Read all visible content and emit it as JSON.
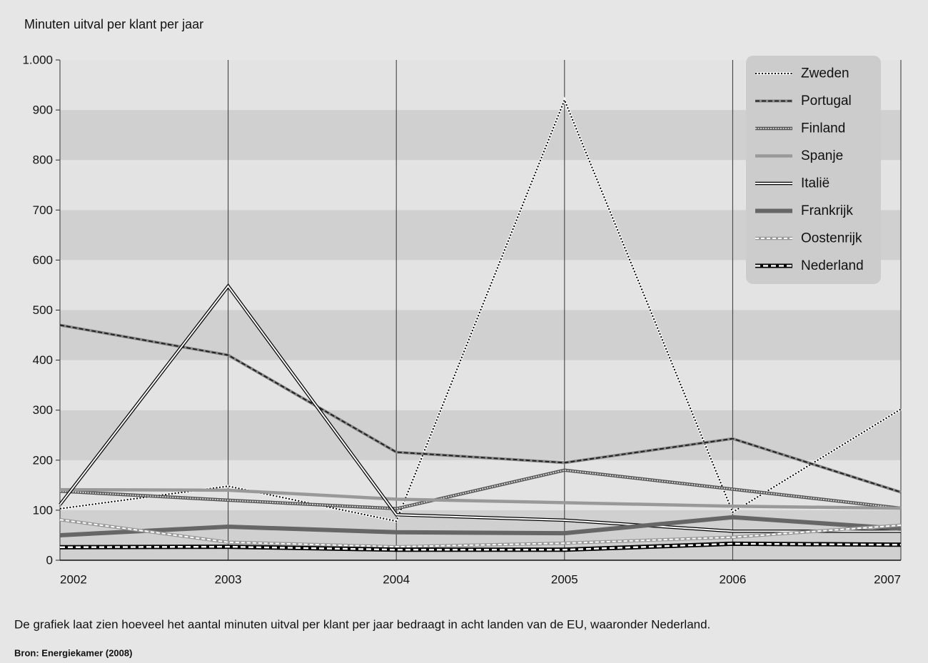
{
  "chart_data": {
    "type": "line",
    "title": "Minuten uitval per klant per jaar",
    "caption": "De grafiek laat zien hoeveel het aantal minuten uitval per klant per jaar bedraagt in acht landen van de EU, waaronder Nederland.",
    "source": "Bron: Energiekamer (2008)",
    "x": [
      2002,
      2003,
      2004,
      2005,
      2006,
      2007
    ],
    "xlim": [
      2002,
      2007
    ],
    "xticks": [
      2002,
      2003,
      2004,
      2005,
      2006,
      2007
    ],
    "ylim": [
      0,
      1000
    ],
    "yticks": [
      0,
      100,
      200,
      300,
      400,
      500,
      600,
      700,
      800,
      900,
      {
        "value": 1000,
        "label": "1.000"
      }
    ],
    "grid": true,
    "legend": "upper right",
    "series": [
      {
        "name": "Zweden",
        "color": "#000000",
        "values": [
          103,
          148,
          78,
          920,
          96,
          302
        ]
      },
      {
        "name": "Portugal",
        "color": "#222222",
        "values": [
          470,
          410,
          216,
          195,
          243,
          136
        ]
      },
      {
        "name": "Finland",
        "color": "#dddddd",
        "values": [
          138,
          120,
          103,
          180,
          142,
          104
        ]
      },
      {
        "name": "Spanje",
        "color": "#999999",
        "values": [
          141,
          140,
          122,
          115,
          108,
          104
        ]
      },
      {
        "name": "Italië",
        "color": "#ffffff",
        "values": [
          111,
          548,
          91,
          80,
          58,
          58
        ]
      },
      {
        "name": "Frankrijk",
        "color": "#666666",
        "values": [
          50,
          67,
          56,
          54,
          86,
          63
        ]
      },
      {
        "name": "Oostenrijk",
        "color": "#ffffff",
        "values": [
          81,
          36,
          27,
          34,
          46,
          70
        ]
      },
      {
        "name": "Nederland",
        "color": "#ffffff",
        "values": [
          26,
          27,
          21,
          21,
          33,
          31
        ]
      }
    ]
  }
}
